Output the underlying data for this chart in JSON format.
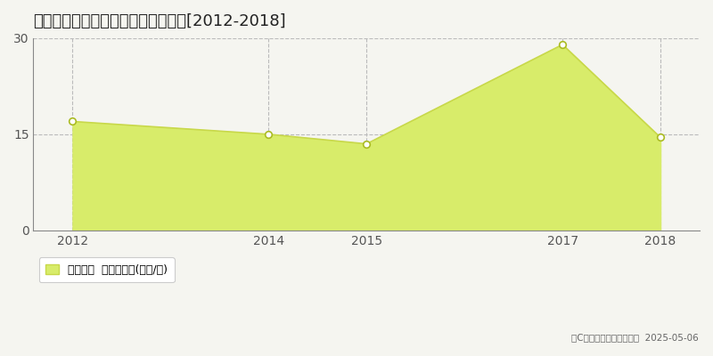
{
  "title": "生駒郡斑鳩町興留東　土地価格推移[2012-2018]",
  "x_values": [
    2012,
    2014,
    2015,
    2017,
    2018
  ],
  "y_values": [
    17,
    15,
    13.5,
    29,
    14.5
  ],
  "xlim": [
    2011.6,
    2018.4
  ],
  "ylim": [
    0,
    30
  ],
  "yticks": [
    0,
    15,
    30
  ],
  "xticks": [
    2012,
    2014,
    2015,
    2017,
    2018
  ],
  "line_color": "#c8d84a",
  "fill_color": "#d8ec6a",
  "fill_alpha": 1.0,
  "marker_color": "white",
  "marker_edge_color": "#aabb22",
  "grid_color": "#bbbbbb",
  "background_color": "#f5f5f0",
  "legend_label": "土地価格  平均坪単価(万円/坪)",
  "copyright_text": "（C）土地価格ドットコム  2025-05-06",
  "title_fontsize": 13,
  "label_fontsize": 9,
  "tick_fontsize": 10
}
